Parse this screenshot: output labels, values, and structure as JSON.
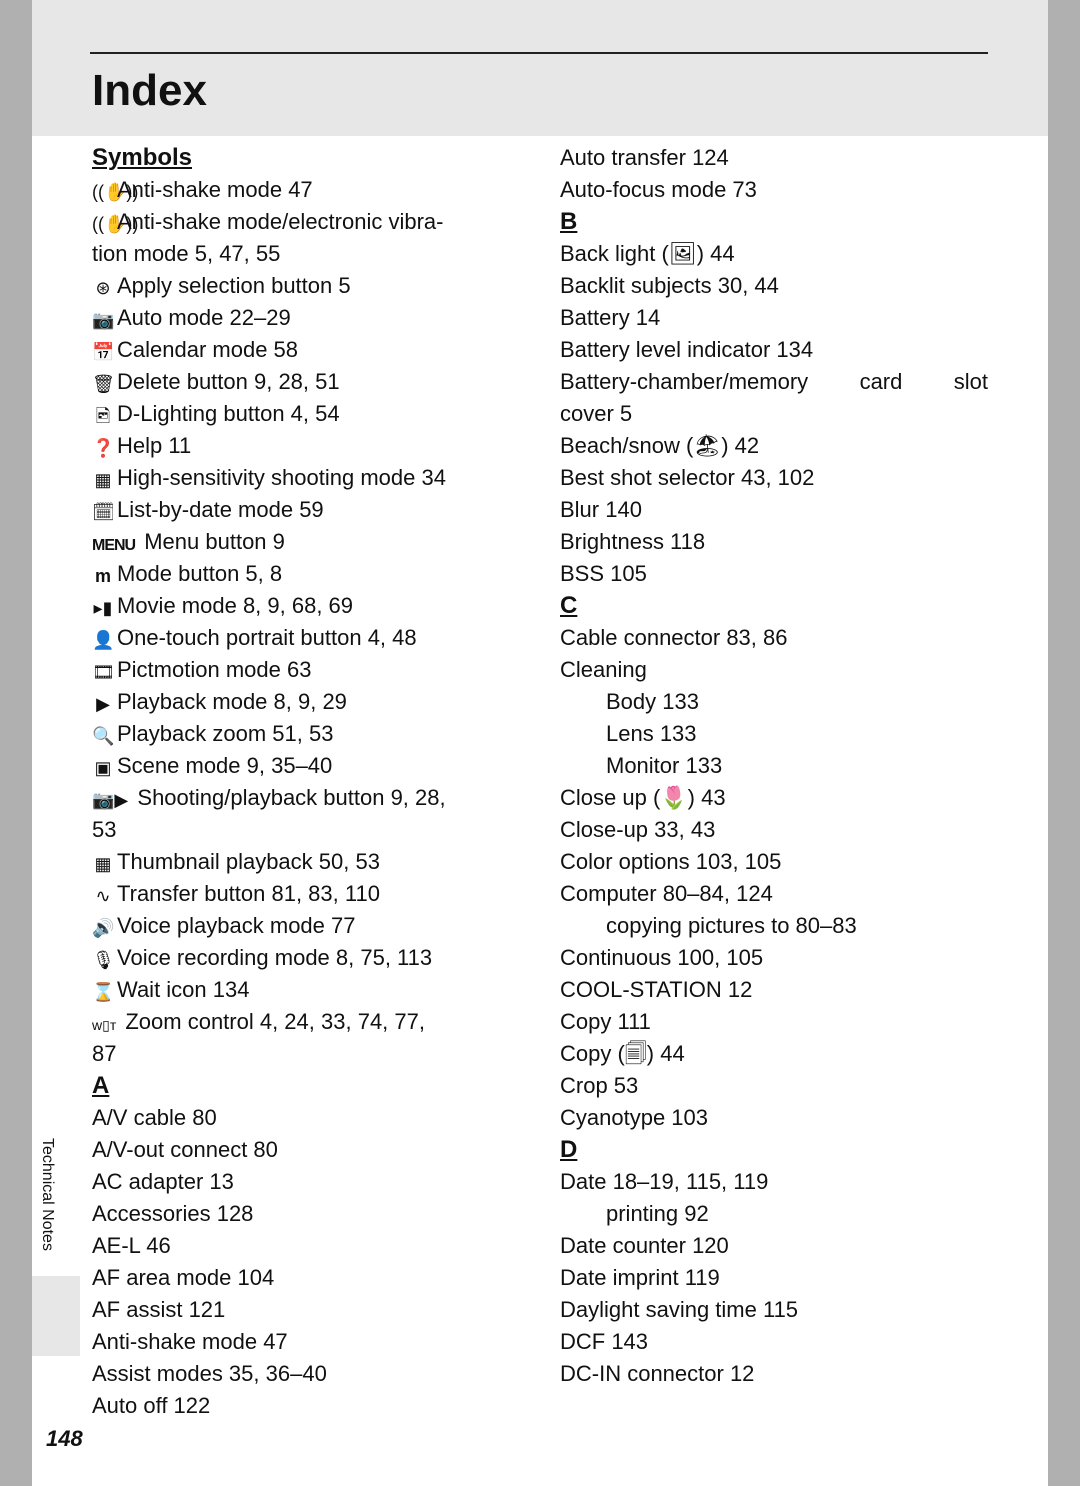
{
  "title": "Index",
  "sidebar_label": "Technical Notes",
  "page_number": "148",
  "col1": {
    "h_symbols": "Symbols",
    "l1": "Anti-shake mode 47",
    "l2a": "Anti-shake mode/electronic vibra-",
    "l2b": "tion mode 5, 47, 55",
    "l3": "Apply selection button 5",
    "l4": "Auto mode 22–29",
    "l5": "Calendar mode 58",
    "l6": "Delete button 9, 28, 51",
    "l7": "D-Lighting button 4, 54",
    "l8": "Help 11",
    "l9": "High-sensitivity shooting mode 34",
    "l10": "List-by-date mode 59",
    "l11_icon": "MENU",
    "l11": "Menu button 9",
    "l12": "Mode button 5, 8",
    "l13": "Movie mode 8, 9, 68, 69",
    "l14": "One-touch portrait button 4, 48",
    "l15": "Pictmotion mode 63",
    "l16": "Playback mode 8, 9, 29",
    "l17": "Playback zoom 51, 53",
    "l18": "Scene mode 9, 35–40",
    "l19a": "Shooting/playback button 9, 28,",
    "l19b": "53",
    "l20": "Thumbnail playback 50, 53",
    "l21": "Transfer button 81, 83, 110",
    "l22": "Voice playback mode 77",
    "l23": "Voice recording mode 8, 75, 113",
    "l24": "Wait icon 134",
    "l25a": "Zoom control 4, 24, 33, 74, 77,",
    "l25b": "87",
    "h_a": "A",
    "a1": "A/V cable 80",
    "a2": "A/V-out connect 80",
    "a3": "AC adapter 13",
    "a4": "Accessories 128",
    "a5": "AE-L 46",
    "a6": "AF area mode 104",
    "a7": "AF assist 121",
    "a8": "Anti-shake mode 47",
    "a9": "Assist modes 35, 36–40",
    "a10": "Auto off 122"
  },
  "col2": {
    "t1": "Auto transfer 124",
    "t2": "Auto-focus mode 73",
    "h_b": "B",
    "b1": "Back light (🖼) 44",
    "b2": "Backlit subjects 30, 44",
    "b3": "Battery 14",
    "b4": "Battery level indicator 134",
    "b5a_left": "Battery-chamber/memory",
    "b5a_mid": "card",
    "b5a_right": "slot",
    "b5b": "cover 5",
    "b6": "Beach/snow (🏖) 42",
    "b7": "Best shot selector 43, 102",
    "b8": "Blur 140",
    "b9": "Brightness 118",
    "b10": "BSS 105",
    "h_c": "C",
    "c1": "Cable connector 83, 86",
    "c2": "Cleaning",
    "c2a": "Body 133",
    "c2b": "Lens 133",
    "c2c": "Monitor 133",
    "c3": "Close up (🌷) 43",
    "c4": "Close-up 33, 43",
    "c5": "Color options 103, 105",
    "c6": "Computer 80–84, 124",
    "c6a": "copying pictures to 80–83",
    "c7": "Continuous 100, 105",
    "c8": "COOL-STATION 12",
    "c9": "Copy 111",
    "c10": "Copy (🗐) 44",
    "c11": "Crop 53",
    "c12": "Cyanotype 103",
    "h_d": "D",
    "d1": "Date 18–19, 115, 119",
    "d1a": "printing 92",
    "d2": "Date counter 120",
    "d3": "Date imprint 119",
    "d4": "Daylight saving time 115",
    "d5": "DCF 143",
    "d6": "DC-IN connector 12"
  }
}
